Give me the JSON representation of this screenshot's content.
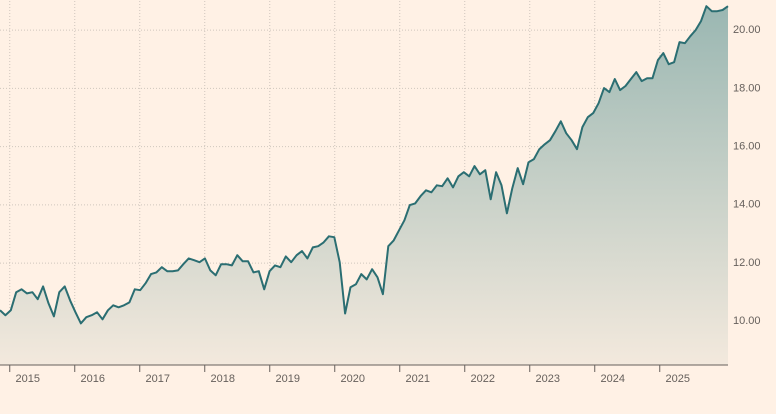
{
  "chart_data": {
    "type": "area",
    "series": [
      {
        "color": "#2b6e72",
        "values": [
          10.38,
          10.21,
          10.38,
          11.0,
          11.1,
          10.96,
          11.0,
          10.76,
          11.2,
          10.62,
          10.17,
          11.0,
          11.2,
          10.72,
          10.31,
          9.93,
          10.14,
          10.21,
          10.31,
          10.07,
          10.38,
          10.55,
          10.48,
          10.55,
          10.65,
          11.1,
          11.07,
          11.31,
          11.62,
          11.68,
          11.86,
          11.72,
          11.72,
          11.75,
          11.96,
          12.16,
          12.1,
          12.03,
          12.16,
          11.75,
          11.58,
          11.96,
          11.96,
          11.92,
          12.27,
          12.06,
          12.06,
          11.68,
          11.72,
          11.1,
          11.72,
          11.92,
          11.86,
          12.23,
          12.03,
          12.27,
          12.41,
          12.16,
          12.54,
          12.58,
          12.71,
          12.92,
          12.89,
          12.03,
          10.27,
          11.17,
          11.27,
          11.62,
          11.44,
          11.79,
          11.51,
          10.93,
          12.58,
          12.78,
          13.13,
          13.47,
          13.99,
          14.05,
          14.3,
          14.5,
          14.43,
          14.67,
          14.64,
          14.91,
          14.6,
          14.98,
          15.12,
          14.98,
          15.33,
          15.05,
          15.19,
          14.19,
          15.12,
          14.67,
          13.71,
          14.57,
          15.26,
          14.71,
          15.46,
          15.57,
          15.91,
          16.08,
          16.22,
          16.53,
          16.87,
          16.46,
          16.22,
          15.91,
          16.67,
          17.01,
          17.15,
          17.49,
          18.01,
          17.87,
          18.32,
          17.94,
          18.08,
          18.32,
          18.56,
          18.25,
          18.35,
          18.35,
          18.97,
          19.21,
          18.83,
          18.9,
          19.59,
          19.55,
          19.79,
          20.0,
          20.31,
          20.82,
          20.65,
          20.65,
          20.69,
          20.82
        ]
      }
    ],
    "xlim": [
      2014.85,
      2026.05
    ],
    "xticks": [
      2015,
      2016,
      2017,
      2018,
      2019,
      2020,
      2021,
      2022,
      2023,
      2024,
      2025
    ],
    "ylim": [
      8.5,
      21.0
    ],
    "yticks": [
      {
        "value": 10,
        "label": "10.00"
      },
      {
        "value": 12,
        "label": "12.00"
      },
      {
        "value": 14,
        "label": "14.00"
      },
      {
        "value": 16,
        "label": "16.00"
      },
      {
        "value": 18,
        "label": "18.00"
      },
      {
        "value": 20,
        "label": "20.00"
      }
    ],
    "grid": true
  }
}
